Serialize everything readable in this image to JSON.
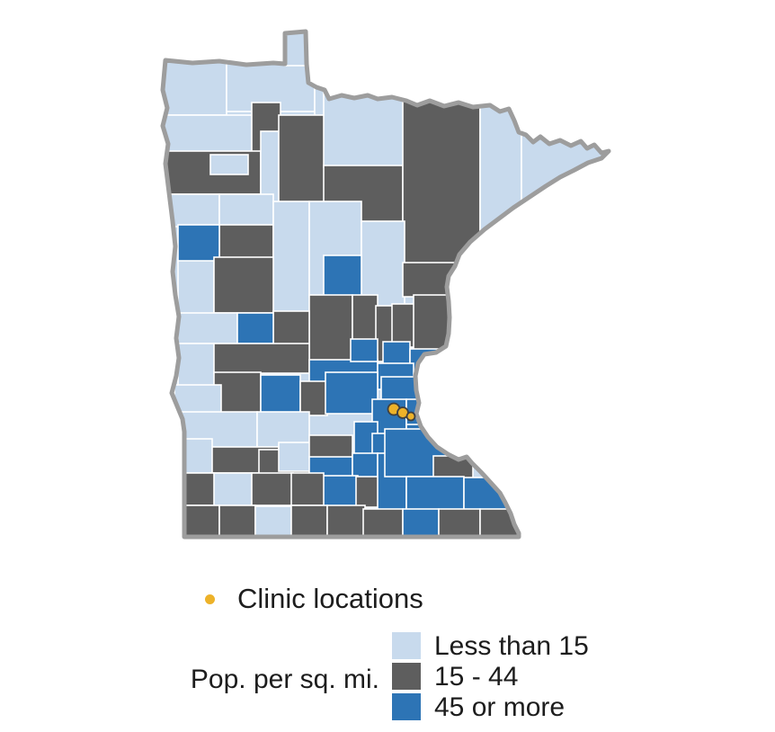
{
  "legend": {
    "clinic": {
      "label": "Clinic locations",
      "dot_color": "#edb229"
    },
    "density_label": "Pop. per sq. mi.",
    "classes": [
      {
        "label": "Less than 15",
        "color": "#c8daed"
      },
      {
        "label": "15 - 44",
        "color": "#5e5e5e"
      },
      {
        "label": "45 or more",
        "color": "#2d74b5"
      }
    ]
  },
  "map": {
    "region": "Minnesota counties, population density choropleth",
    "colors": {
      "L": "#c8daed",
      "G": "#5e5e5e",
      "B": "#2d74b5"
    },
    "outline_color": "#9d9d9d",
    "county_border_color": "#ffffff",
    "clinic_dot_color": "#edb229",
    "clinic_dot_stroke": "#404040",
    "clinic_dots": [
      [
        438,
        455,
        6.5
      ],
      [
        448,
        459,
        6.0
      ],
      [
        457,
        463,
        4.5
      ]
    ],
    "counties": [
      [
        166,
        66,
        86,
        62,
        "L"
      ],
      [
        252,
        66,
        98,
        58,
        "L"
      ],
      [
        317,
        33,
        24,
        40,
        "L"
      ],
      [
        350,
        68,
        98,
        94,
        "L"
      ],
      [
        166,
        128,
        114,
        42,
        "L"
      ],
      [
        280,
        114,
        32,
        56,
        "G"
      ],
      [
        168,
        168,
        122,
        48,
        "G"
      ],
      [
        234,
        172,
        42,
        22,
        "L"
      ],
      [
        290,
        146,
        20,
        114,
        "L"
      ],
      [
        310,
        128,
        52,
        98,
        "G"
      ],
      [
        360,
        98,
        90,
        88,
        "L"
      ],
      [
        360,
        184,
        88,
        64,
        "G"
      ],
      [
        448,
        104,
        86,
        196,
        "G"
      ],
      [
        534,
        108,
        46,
        192,
        "L"
      ],
      [
        580,
        110,
        100,
        118,
        "L"
      ],
      [
        166,
        216,
        78,
        36,
        "L"
      ],
      [
        244,
        216,
        60,
        36,
        "L"
      ],
      [
        244,
        250,
        60,
        40,
        "G"
      ],
      [
        198,
        250,
        46,
        42,
        "B"
      ],
      [
        304,
        224,
        40,
        124,
        "L"
      ],
      [
        344,
        224,
        58,
        106,
        "L"
      ],
      [
        402,
        246,
        48,
        96,
        "L"
      ],
      [
        448,
        292,
        58,
        38,
        "G"
      ],
      [
        198,
        290,
        40,
        62,
        "L"
      ],
      [
        238,
        286,
        66,
        62,
        "G"
      ],
      [
        360,
        284,
        42,
        62,
        "B"
      ],
      [
        344,
        328,
        48,
        78,
        "G"
      ],
      [
        392,
        328,
        28,
        50,
        "G"
      ],
      [
        304,
        346,
        40,
        60,
        "G"
      ],
      [
        418,
        340,
        20,
        62,
        "G"
      ],
      [
        436,
        338,
        26,
        48,
        "G"
      ],
      [
        460,
        328,
        42,
        62,
        "G"
      ],
      [
        198,
        348,
        66,
        34,
        "L"
      ],
      [
        264,
        348,
        40,
        34,
        "B"
      ],
      [
        198,
        382,
        42,
        48,
        "L"
      ],
      [
        238,
        382,
        106,
        33,
        "G"
      ],
      [
        238,
        414,
        52,
        47,
        "G"
      ],
      [
        194,
        428,
        52,
        40,
        "L"
      ],
      [
        344,
        400,
        76,
        40,
        "B"
      ],
      [
        390,
        377,
        30,
        25,
        "B"
      ],
      [
        426,
        380,
        30,
        44,
        "B"
      ],
      [
        456,
        388,
        36,
        46,
        "B"
      ],
      [
        420,
        404,
        40,
        29,
        "B"
      ],
      [
        290,
        417,
        44,
        45,
        "B"
      ],
      [
        334,
        424,
        30,
        38,
        "G"
      ],
      [
        362,
        414,
        58,
        46,
        "B"
      ],
      [
        424,
        419,
        40,
        31,
        "B"
      ],
      [
        464,
        437,
        20,
        45,
        "B"
      ],
      [
        414,
        444,
        38,
        41,
        "B"
      ],
      [
        452,
        444,
        16,
        29,
        "B"
      ],
      [
        394,
        469,
        26,
        39,
        "B"
      ],
      [
        414,
        482,
        38,
        29,
        "B"
      ],
      [
        452,
        472,
        44,
        36,
        "B"
      ],
      [
        198,
        458,
        88,
        50,
        "L"
      ],
      [
        286,
        458,
        58,
        44,
        "L"
      ],
      [
        230,
        497,
        80,
        29,
        "G"
      ],
      [
        288,
        500,
        56,
        28,
        "G"
      ],
      [
        310,
        492,
        52,
        32,
        "L"
      ],
      [
        344,
        484,
        48,
        26,
        "G"
      ],
      [
        198,
        488,
        38,
        38,
        "L"
      ],
      [
        344,
        508,
        48,
        31,
        "B"
      ],
      [
        392,
        504,
        28,
        36,
        "B"
      ],
      [
        356,
        529,
        42,
        35,
        "B"
      ],
      [
        396,
        530,
        26,
        34,
        "G"
      ],
      [
        420,
        504,
        32,
        63,
        "B"
      ],
      [
        428,
        477,
        68,
        53,
        "B"
      ],
      [
        482,
        507,
        44,
        31,
        "G"
      ],
      [
        452,
        530,
        64,
        37,
        "B"
      ],
      [
        516,
        531,
        56,
        36,
        "B"
      ],
      [
        234,
        526,
        46,
        36,
        "L"
      ],
      [
        198,
        526,
        40,
        36,
        "G"
      ],
      [
        280,
        526,
        46,
        36,
        "G"
      ],
      [
        324,
        526,
        36,
        36,
        "G"
      ],
      [
        198,
        562,
        46,
        35,
        "G"
      ],
      [
        244,
        562,
        40,
        35,
        "G"
      ],
      [
        284,
        563,
        40,
        33,
        "L"
      ],
      [
        324,
        562,
        40,
        35,
        "G"
      ],
      [
        364,
        562,
        42,
        35,
        "G"
      ],
      [
        404,
        566,
        44,
        31,
        "G"
      ],
      [
        448,
        566,
        40,
        32,
        "B"
      ],
      [
        488,
        566,
        46,
        31,
        "G"
      ],
      [
        534,
        566,
        46,
        31,
        "G"
      ]
    ]
  }
}
